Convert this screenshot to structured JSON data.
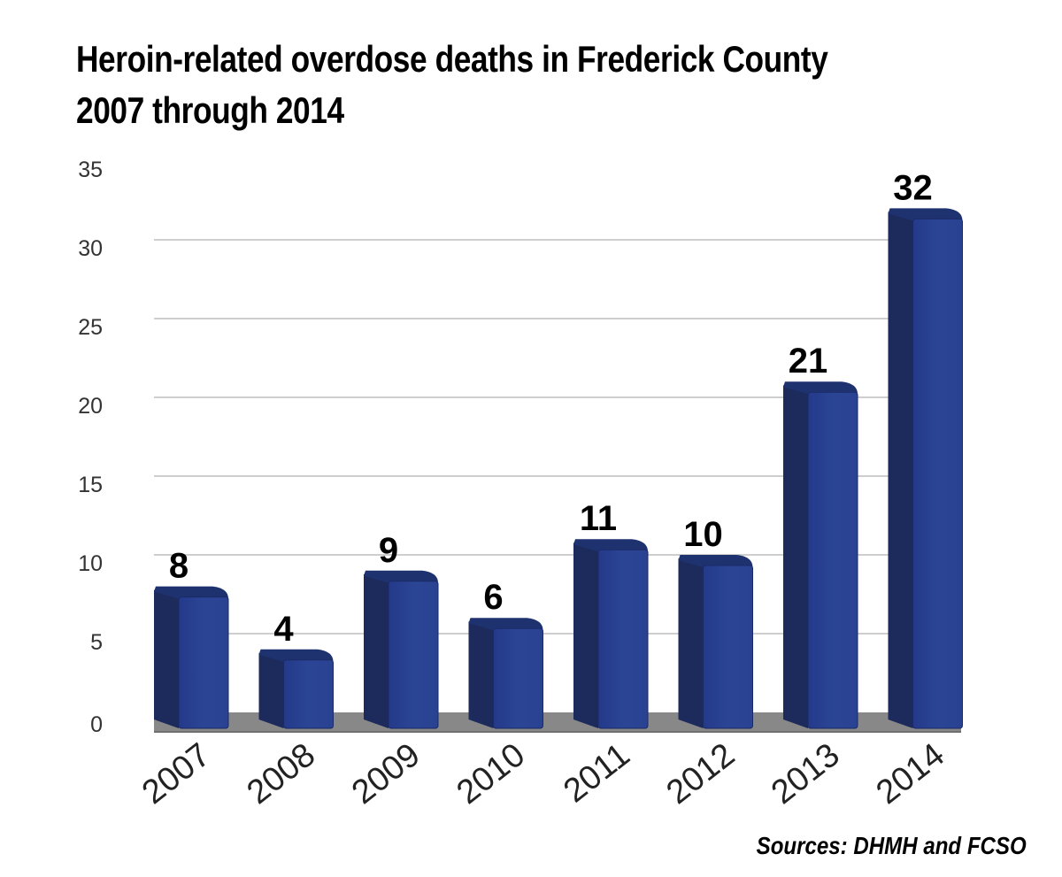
{
  "title_lines": [
    "Heroin-related overdose deaths in Frederick County",
    "2007 through 2014"
  ],
  "source": "Sources: DHMH and FCSO",
  "colors": {
    "bar_front": "#2b4595",
    "bar_side": "#1c2a5c",
    "bar_top": "#1f3270",
    "floor": "#888888",
    "grid": "#bdbdbd"
  },
  "chart_data": {
    "type": "bar",
    "categories": [
      "2007",
      "2008",
      "2009",
      "2010",
      "2011",
      "2012",
      "2013",
      "2014"
    ],
    "values": [
      8,
      4,
      9,
      6,
      11,
      10,
      21,
      32
    ],
    "data_labels": [
      "8",
      "4",
      "9",
      "6",
      "11",
      "10",
      "21",
      "32"
    ],
    "y_ticks": [
      "0",
      "5",
      "10",
      "15",
      "20",
      "25",
      "30",
      "35"
    ],
    "ylim": [
      0,
      35
    ],
    "grid": true,
    "legend": "none",
    "xlabel": "",
    "ylabel": ""
  }
}
